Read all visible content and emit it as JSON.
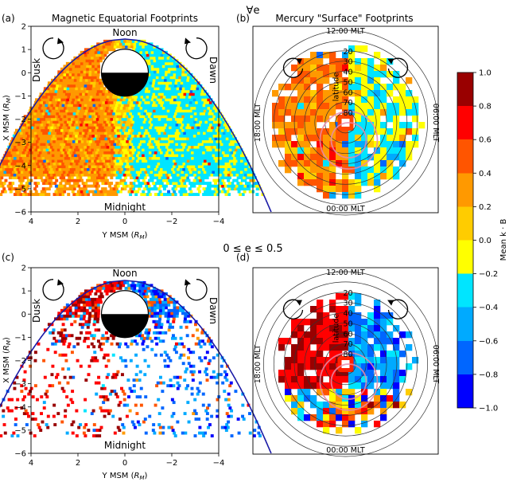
{
  "figure": {
    "row_labels": [
      "∀e",
      "0 ≤ e ≤ 0.5"
    ]
  },
  "colorbar": {
    "label": "Mean k · B",
    "range": [
      -1.0,
      1.0
    ],
    "ticks": [
      "1.0",
      "0.8",
      "0.6",
      "0.4",
      "0.2",
      "0.0",
      "−0.2",
      "−0.4",
      "−0.6",
      "−0.8",
      "−1.0"
    ],
    "stops": [
      "#0000ff",
      "#0066ff",
      "#00aaff",
      "#00e5ff",
      "#ffff00",
      "#ffcc00",
      "#ff9900",
      "#ff5500",
      "#ff0000",
      "#990000"
    ]
  },
  "chart_data": [
    {
      "panel": "(a)",
      "type": "heatmap",
      "title": "Magnetic Equatorial Footprints",
      "xlabel": "Y MSM (R_M)",
      "ylabel": "X MSM (R_M)",
      "xlim": [
        4,
        -4
      ],
      "ylim": [
        -6,
        2
      ],
      "xticks": [
        "4",
        "2",
        "0",
        "−2",
        "−4"
      ],
      "yticks": [
        "2",
        "1",
        "0",
        "−1",
        "−2",
        "−3",
        "−4",
        "−5",
        "−6"
      ],
      "annotations": [
        "Noon",
        "Midnight",
        "Dusk",
        "Dawn"
      ],
      "dominant_value_dusk": 0.3,
      "dominant_value_dawn": -0.2
    },
    {
      "panel": "(b)",
      "type": "heatmap",
      "title": "Mercury \"Surface\" Footprints",
      "projection": "polar",
      "latitude_rings": [
        "20",
        "30",
        "40",
        "50",
        "60",
        "70",
        "80"
      ],
      "axis_title": "latitude",
      "mlt_labels": [
        "12:00 MLT",
        "06:00 MLT",
        "00:00 MLT",
        "18:00 MLT"
      ],
      "dominant_value_dusk": 0.35,
      "dominant_value_dawn": -0.2
    },
    {
      "panel": "(c)",
      "type": "heatmap",
      "title": "",
      "xlabel": "Y MSM (R_M)",
      "ylabel": "X MSM (R_M)",
      "xlim": [
        4,
        -4
      ],
      "ylim": [
        -6,
        2
      ],
      "xticks": [
        "4",
        "2",
        "0",
        "−2",
        "−4"
      ],
      "yticks": [
        "2",
        "1",
        "0",
        "−1",
        "−2",
        "−3",
        "−4",
        "−5",
        "−6"
      ],
      "annotations": [
        "Noon",
        "Midnight",
        "Dusk",
        "Dawn"
      ],
      "dominant_value_dusk": 0.8,
      "dominant_value_dawn": -0.7
    },
    {
      "panel": "(d)",
      "type": "heatmap",
      "title": "",
      "projection": "polar",
      "latitude_rings": [
        "20",
        "30",
        "40",
        "50",
        "60",
        "70",
        "80"
      ],
      "axis_title": "latitude",
      "mlt_labels": [
        "12:00 MLT",
        "06:00 MLT",
        "00:00 MLT",
        "18:00 MLT"
      ],
      "dominant_value_dusk": 0.8,
      "dominant_value_dawn": -0.7
    }
  ]
}
